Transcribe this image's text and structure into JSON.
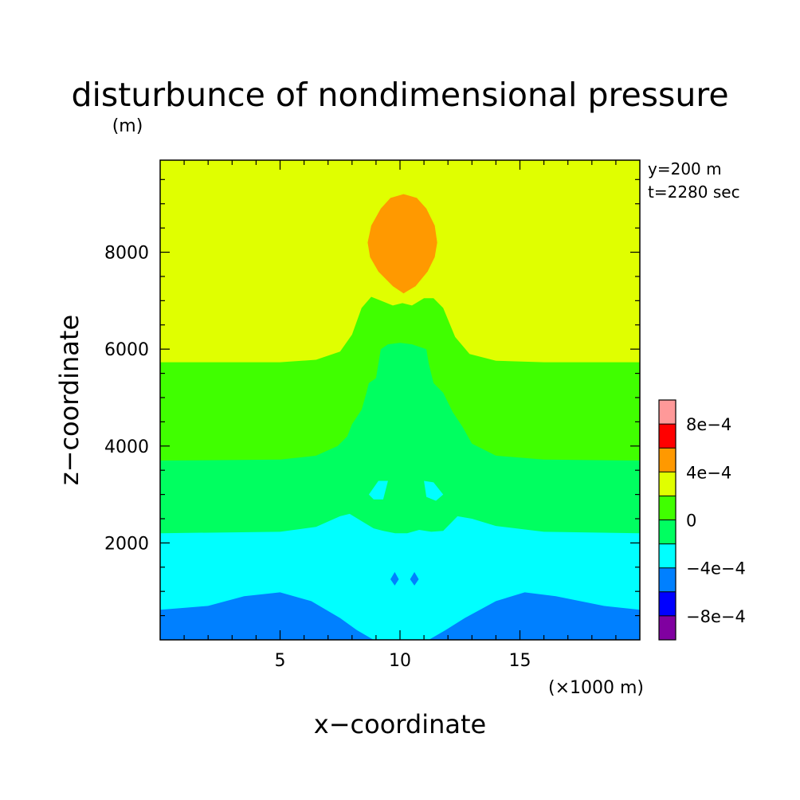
{
  "chart_data": {
    "type": "heatmap",
    "title": "disturbunce of nondimensional pressure",
    "unit_label": "(m)",
    "xlabel": "x−coordinate",
    "ylabel": "z−coordinate",
    "x_unit_label": "(×1000 m)",
    "annotations": [
      "y=200 m",
      "t=2280 sec"
    ],
    "xlim": [
      0,
      20
    ],
    "ylim": [
      0,
      9900
    ],
    "x_ticks": [
      {
        "value": 5,
        "label": "5"
      },
      {
        "value": 10,
        "label": "10"
      },
      {
        "value": 15,
        "label": "15"
      }
    ],
    "y_ticks": [
      {
        "value": 2000,
        "label": "2000"
      },
      {
        "value": 4000,
        "label": "4000"
      },
      {
        "value": 6000,
        "label": "6000"
      },
      {
        "value": 8000,
        "label": "8000"
      }
    ],
    "contour_levels": [
      -0.001,
      -0.0008,
      -0.0006,
      -0.0004,
      -0.0002,
      0,
      0.0002,
      0.0004,
      0.0006,
      0.0008,
      0.001
    ],
    "colorbar": {
      "colors": [
        "#8000a0",
        "#0000ff",
        "#0080ff",
        "#00ffff",
        "#00ff60",
        "#40ff00",
        "#e0ff00",
        "#ff9900",
        "#ff0000",
        "#ff9999"
      ],
      "labels": [
        {
          "level": -0.0008,
          "label": "−8e−4"
        },
        {
          "level": -0.0004,
          "label": "−4e−4"
        },
        {
          "level": 0,
          "label": "0"
        },
        {
          "level": 0.0004,
          "label": "4e−4"
        },
        {
          "level": 0.0008,
          "label": "8e−4"
        }
      ]
    },
    "regions": [
      {
        "name": "background",
        "band": "2e-4 to 4e-4",
        "color_index": 6,
        "points": [
          [
            0,
            0
          ],
          [
            20,
            0
          ],
          [
            20,
            9900
          ],
          [
            0,
            9900
          ]
        ]
      },
      {
        "name": "upper-band",
        "band": "0 to 2e-4",
        "color_index": 5,
        "points": [
          [
            0,
            0
          ],
          [
            0,
            5730
          ],
          [
            3,
            5730
          ],
          [
            5,
            5730
          ],
          [
            6.5,
            5780
          ],
          [
            7.5,
            5950
          ],
          [
            8.0,
            6300
          ],
          [
            8.4,
            6850
          ],
          [
            8.8,
            7080
          ],
          [
            9.2,
            7000
          ],
          [
            9.7,
            6900
          ],
          [
            10.1,
            6950
          ],
          [
            10.5,
            6900
          ],
          [
            11.0,
            7050
          ],
          [
            11.4,
            7050
          ],
          [
            11.8,
            6850
          ],
          [
            12.3,
            6250
          ],
          [
            12.9,
            5900
          ],
          [
            14,
            5760
          ],
          [
            16,
            5730
          ],
          [
            20,
            5730
          ],
          [
            20,
            0
          ]
        ]
      },
      {
        "name": "middle-band",
        "band": "-2e-4 to 0",
        "color_index": 4,
        "points": [
          [
            0,
            0
          ],
          [
            0,
            3700
          ],
          [
            5,
            3720
          ],
          [
            6.5,
            3800
          ],
          [
            7.4,
            4000
          ],
          [
            7.8,
            4200
          ],
          [
            8.0,
            4450
          ],
          [
            8.4,
            4750
          ],
          [
            8.6,
            5100
          ],
          [
            8.7,
            5300
          ],
          [
            9.0,
            5400
          ],
          [
            9.1,
            5700
          ],
          [
            9.2,
            6000
          ],
          [
            9.5,
            6100
          ],
          [
            10,
            6130
          ],
          [
            10.5,
            6100
          ],
          [
            11.1,
            6000
          ],
          [
            11.2,
            5700
          ],
          [
            11.4,
            5300
          ],
          [
            11.8,
            5100
          ],
          [
            12.2,
            4700
          ],
          [
            12.6,
            4400
          ],
          [
            13,
            4050
          ],
          [
            14,
            3800
          ],
          [
            16,
            3720
          ],
          [
            20,
            3700
          ],
          [
            20,
            0
          ]
        ]
      },
      {
        "name": "lower-band",
        "band": "-4e-4 to -2e-4",
        "color_index": 3,
        "points": [
          [
            0,
            0
          ],
          [
            0,
            2200
          ],
          [
            5,
            2230
          ],
          [
            6.5,
            2330
          ],
          [
            7.5,
            2550
          ],
          [
            7.9,
            2600
          ],
          [
            8.4,
            2450
          ],
          [
            8.9,
            2300
          ],
          [
            9.3,
            2250
          ],
          [
            9.8,
            2200
          ],
          [
            10.3,
            2200
          ],
          [
            10.8,
            2270
          ],
          [
            11.3,
            2230
          ],
          [
            11.8,
            2250
          ],
          [
            12.4,
            2550
          ],
          [
            13,
            2500
          ],
          [
            14,
            2350
          ],
          [
            16,
            2230
          ],
          [
            20,
            2200
          ],
          [
            20,
            0
          ]
        ]
      },
      {
        "name": "bottom-band",
        "band": "-6e-4 to -4e-4",
        "color_index": 2,
        "points": [
          [
            0,
            0
          ],
          [
            0,
            620
          ],
          [
            2,
            700
          ],
          [
            3.5,
            900
          ],
          [
            5,
            980
          ],
          [
            6.3,
            800
          ],
          [
            7.5,
            450
          ],
          [
            8.2,
            200
          ],
          [
            8.9,
            0
          ],
          [
            11.2,
            0
          ],
          [
            11.9,
            200
          ],
          [
            12.7,
            450
          ],
          [
            14,
            800
          ],
          [
            15.2,
            980
          ],
          [
            16.5,
            900
          ],
          [
            18.5,
            700
          ],
          [
            20,
            620
          ],
          [
            20,
            0
          ]
        ]
      },
      {
        "name": "upper-blob",
        "band": "4e-4 to 6e-4",
        "color_index": 7,
        "points": [
          [
            10.15,
            7150
          ],
          [
            9.7,
            7300
          ],
          [
            9.1,
            7600
          ],
          [
            8.75,
            7900
          ],
          [
            8.65,
            8200
          ],
          [
            8.8,
            8550
          ],
          [
            9.2,
            8900
          ],
          [
            9.6,
            9120
          ],
          [
            10.15,
            9200
          ],
          [
            10.7,
            9120
          ],
          [
            11.1,
            8900
          ],
          [
            11.45,
            8550
          ],
          [
            11.55,
            8200
          ],
          [
            11.45,
            7900
          ],
          [
            11.15,
            7600
          ],
          [
            10.65,
            7300
          ]
        ]
      },
      {
        "name": "small-cyan-left",
        "band": "-4e-4 to -2e-4",
        "color_index": 3,
        "points": [
          [
            8.7,
            3000
          ],
          [
            9.1,
            3280
          ],
          [
            9.5,
            3280
          ],
          [
            9.3,
            2900
          ],
          [
            8.9,
            2900
          ]
        ]
      },
      {
        "name": "small-cyan-right",
        "band": "-4e-4 to -2e-4",
        "color_index": 3,
        "points": [
          [
            11.0,
            3280
          ],
          [
            11.4,
            3250
          ],
          [
            11.8,
            3000
          ],
          [
            11.5,
            2870
          ],
          [
            11.1,
            2950
          ]
        ]
      },
      {
        "name": "small-blue-left",
        "band": "-6e-4 to -4e-4",
        "color_index": 2,
        "points": [
          [
            9.6,
            1250
          ],
          [
            9.78,
            1400
          ],
          [
            9.95,
            1250
          ],
          [
            9.78,
            1120
          ]
        ]
      },
      {
        "name": "small-blue-right",
        "band": "-6e-4 to -4e-4",
        "color_index": 2,
        "points": [
          [
            10.42,
            1250
          ],
          [
            10.6,
            1400
          ],
          [
            10.78,
            1250
          ],
          [
            10.6,
            1120
          ]
        ]
      }
    ]
  }
}
